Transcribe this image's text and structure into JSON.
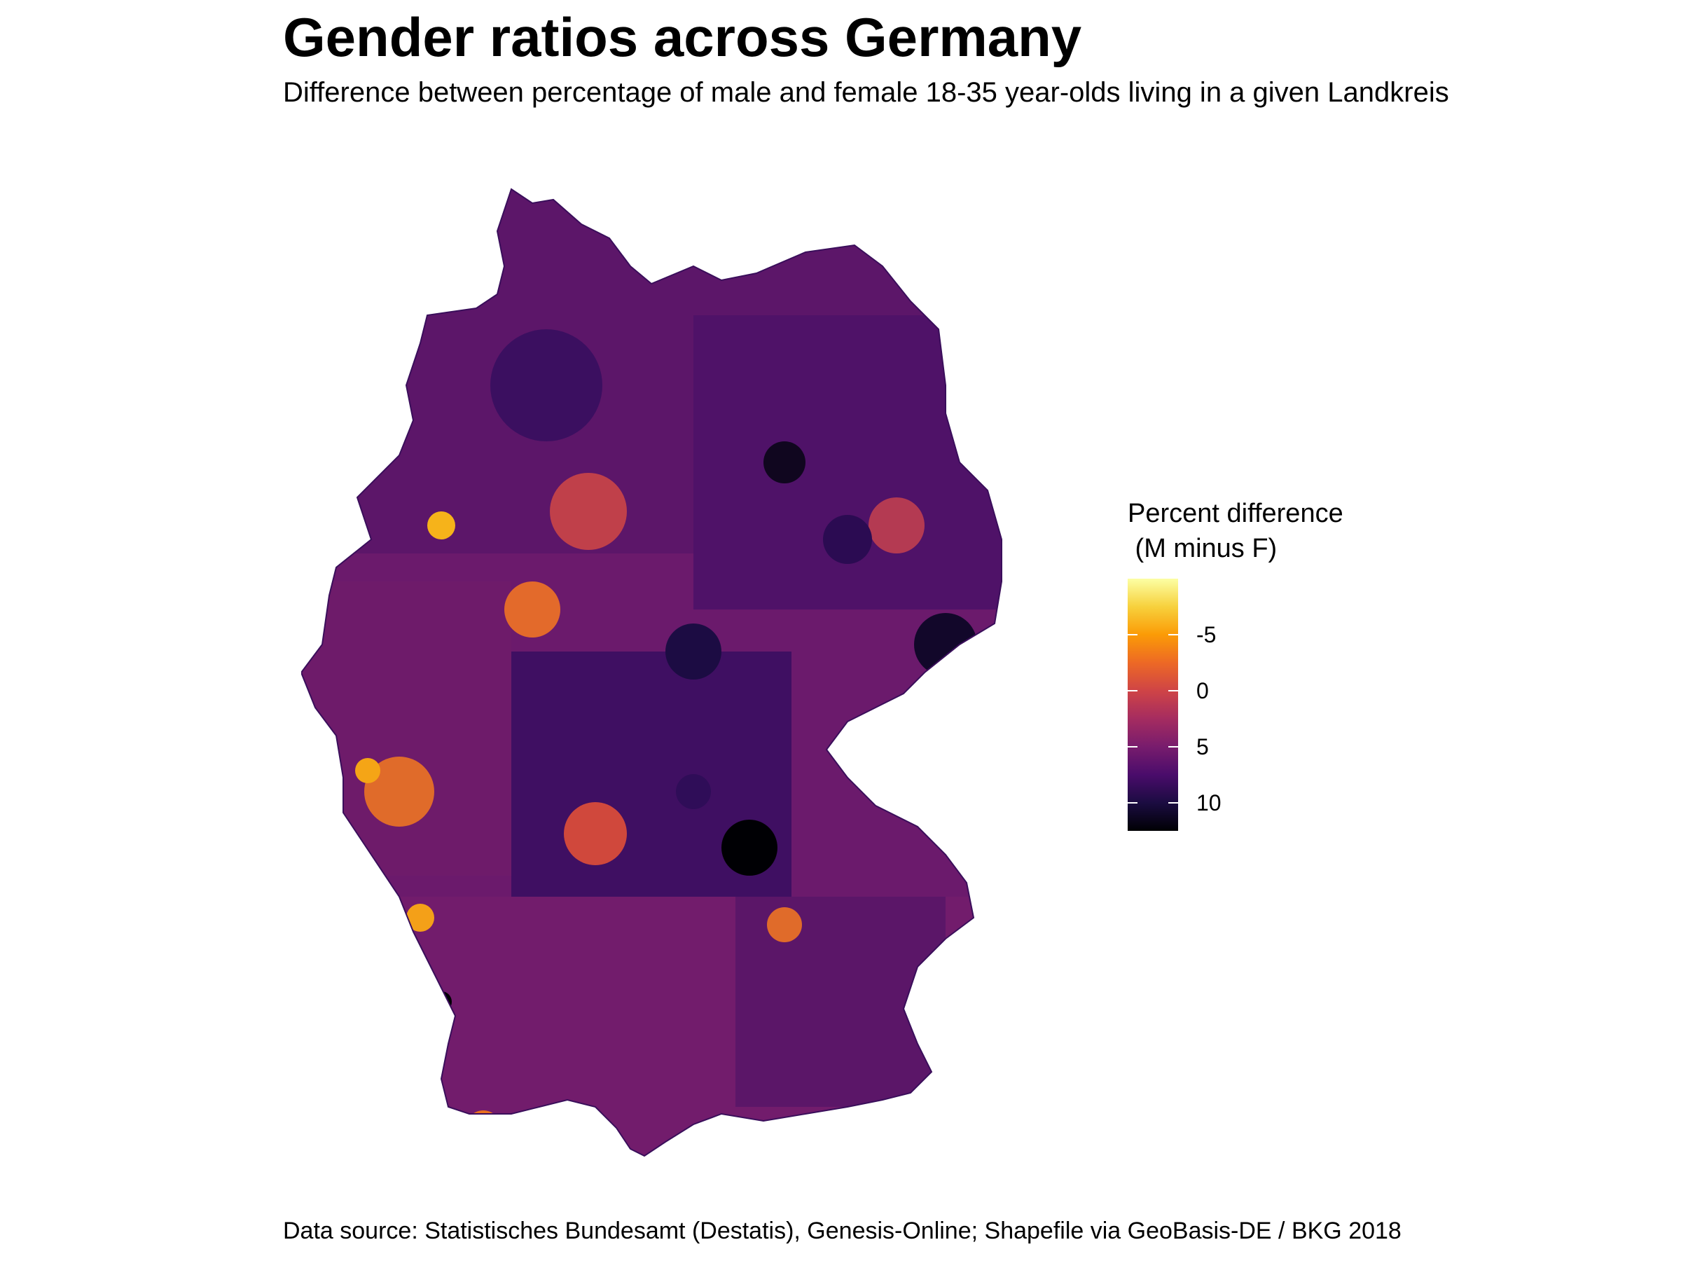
{
  "title": "Gender ratios across Germany",
  "subtitle": "Difference between percentage of male and female 18-35 year-olds living in a given Landkreis",
  "caption": "Data source: Statistisches Bundesamt (Destatis), Genesis-Online; Shapefile via GeoBasis-DE / BKG 2018",
  "map": {
    "region": "Germany",
    "unit": "Landkreis"
  },
  "legend": {
    "title": "Percent difference\n (M minus F)",
    "range": [
      -10,
      12.5
    ],
    "reversed": true,
    "palette": "inferno",
    "ticks": [
      {
        "value": -5,
        "label": "-5"
      },
      {
        "value": 0,
        "label": "0"
      },
      {
        "value": 5,
        "label": "5"
      },
      {
        "value": 10,
        "label": "10"
      }
    ],
    "colors": [
      "#fcffa4",
      "#f7d13d",
      "#fb9b06",
      "#ed6925",
      "#cf4446",
      "#a52c60",
      "#781c6d",
      "#4a0c6b",
      "#1b0c41",
      "#000004"
    ]
  }
}
